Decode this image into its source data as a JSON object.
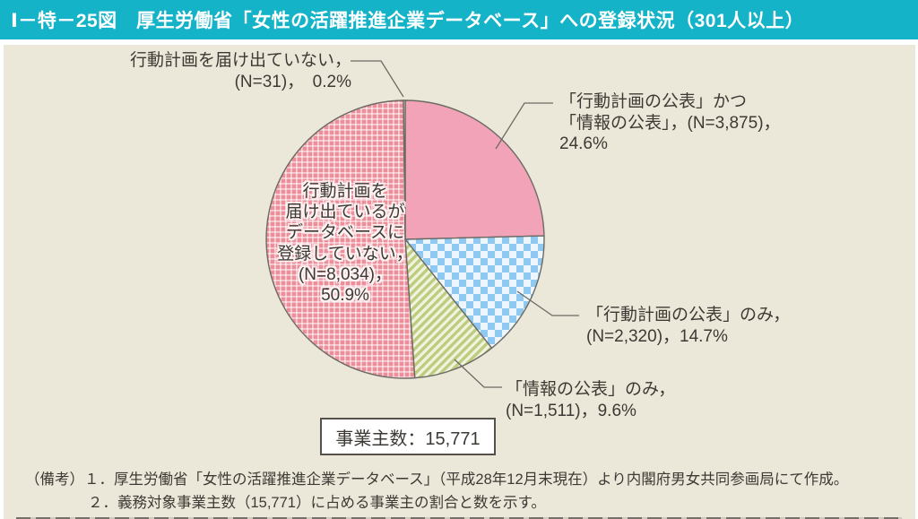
{
  "header": {
    "title": "Ⅰ－特－25図　厚生労働省「女性の活躍推進企業データベース」への登録状況（301人以上）"
  },
  "colors": {
    "header_bg": "#14b3c7",
    "panel_bg": "#ece8d9",
    "pink_solid": "#f3a3b8",
    "pink_grid_base": "#eb8f9b",
    "blue_checker": "#8fc8f0",
    "green_stripe": "#bccd7e",
    "slice_outline": "#6b6b64",
    "text": "#3d3a35"
  },
  "chart_data": {
    "type": "pie",
    "title": "厚生労働省「女性の活躍推進企業データベース」への登録状況（301人以上）",
    "total": 15771,
    "start_angle_deg": -90,
    "clockwise": true,
    "legend_position": "callouts",
    "slices": [
      {
        "name": "「行動計画の公表」かつ「情報の公表」",
        "n": 3875,
        "pct": 24.6,
        "fill": "solid-pink",
        "callout": "「行動計画の公表」かつ\n「情報の公表」，(N=3,875)，\n24.6%"
      },
      {
        "name": "「行動計画の公表」のみ",
        "n": 2320,
        "pct": 14.7,
        "fill": "blue-checker",
        "callout": "「行動計画の公表」のみ，\n(N=2,320)，14.7%"
      },
      {
        "name": "「情報の公表」のみ",
        "n": 1511,
        "pct": 9.6,
        "fill": "green-stripes",
        "callout": "「情報の公表」のみ，\n(N=1,511)，9.6%"
      },
      {
        "name": "行動計画を届け出ているがデータベースに登録していない",
        "n": 8034,
        "pct": 50.9,
        "fill": "pink-grid",
        "callout": "行動計画を\n届け出ているが\nデータベースに\n登録していない，\n(N=8,034)，\n50.9%"
      },
      {
        "name": "行動計画を届け出ていない",
        "n": 31,
        "pct": 0.2,
        "fill": "sliver",
        "callout": "行動計画を届け出ていない，\n(N=31)，　0.2%"
      }
    ]
  },
  "total_box": {
    "label": "事業主数：15,771"
  },
  "notes": {
    "prefix": "（備考）",
    "items": [
      "１．厚生労働省「女性の活躍推進企業データベース」（平成28年12月末現在）より内閣府男女共同参画局にて作成。",
      "２．義務対象事業主数（15,771）に占める事業主の割合と数を示す。"
    ]
  }
}
